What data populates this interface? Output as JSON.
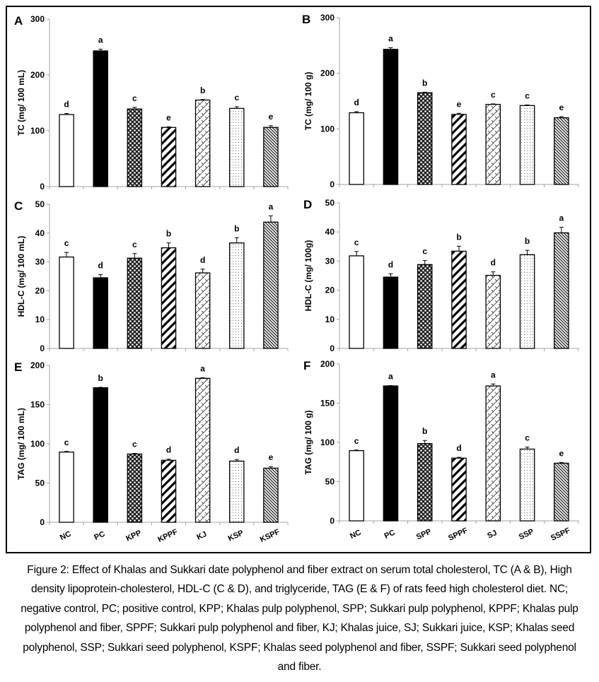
{
  "caption": "Figure 2: Effect of Khalas and Sukkari date polyphenol and fiber extract on serum total cholesterol, TC (A & B), High density lipoprotein-cholesterol, HDL-C (C & D), and triglyceride, TAG (E & F) of rats feed high cholesterol diet. NC; negative control, PC; positive control, KPP; Khalas pulp polyphenol, SPP; Sukkari pulp polyphenol, KPPF; Khalas pulp polyphenol and fiber, SPPF; Sukkari pulp polyphenol and fiber, KJ; Khalas juice, SJ; Sukkari juice, KSP; Khalas seed polyphenol, SSP; Sukkari seed polyphenol, KSPF; Khalas seed polyphenol and fiber, SSPF; Sukkari seed polyphenol and fiber.",
  "colors": {
    "bar_stroke": "#000000",
    "axis": "#a0a0a0",
    "frame": "#000000"
  },
  "patterns": [
    "white",
    "black",
    "checker",
    "diag-wide",
    "zigzag",
    "dots",
    "diag-fine"
  ],
  "chart_data": [
    {
      "panel": "A",
      "type": "bar",
      "ylabel": "TC (mg/ 100 mL)",
      "ylim": [
        0,
        300
      ],
      "yticks": [
        0,
        100,
        200,
        300
      ],
      "categories": [
        "NC",
        "PC",
        "KPP",
        "KPPF",
        "KJ",
        "KSP",
        "KSPF"
      ],
      "show_categories": false,
      "values": [
        129,
        243,
        139,
        106,
        155,
        140,
        106
      ],
      "errors": [
        2,
        3,
        3,
        1,
        1,
        3,
        3
      ],
      "letters": [
        "d",
        "a",
        "c",
        "e",
        "b",
        "c",
        "e"
      ]
    },
    {
      "panel": "B",
      "type": "bar",
      "ylabel": "TC (mg/ 100 g)",
      "ylim": [
        0,
        300
      ],
      "yticks": [
        0,
        100,
        200,
        300
      ],
      "categories": [
        "NC",
        "PC",
        "SPP",
        "SPPF",
        "SJ",
        "SSP",
        "SSPF"
      ],
      "show_categories": false,
      "values": [
        129,
        243,
        165,
        126,
        144,
        142,
        120
      ],
      "errors": [
        2,
        3,
        1,
        2,
        1,
        1,
        2
      ],
      "letters": [
        "d",
        "a",
        "b",
        "e",
        "c",
        "c",
        "e"
      ]
    },
    {
      "panel": "C",
      "type": "bar",
      "ylabel": "HDL-C (mg/ 100 mL)",
      "ylim": [
        0,
        50
      ],
      "yticks": [
        0,
        10,
        20,
        30,
        40,
        50
      ],
      "categories": [
        "NC",
        "PC",
        "KPP",
        "KPPF",
        "KJ",
        "KSP",
        "KSPF"
      ],
      "show_categories": false,
      "values": [
        31.7,
        24.5,
        31.3,
        34.9,
        26.2,
        36.6,
        43.8
      ],
      "errors": [
        1.6,
        1.1,
        1.6,
        1.7,
        1.3,
        1.8,
        2.2
      ],
      "letters": [
        "c",
        "d",
        "c",
        "b",
        "d",
        "b",
        "a"
      ]
    },
    {
      "panel": "D",
      "type": "bar",
      "ylabel": "HDL-C (mg/ 100g)",
      "ylim": [
        0,
        50
      ],
      "yticks": [
        0,
        10,
        20,
        30,
        40,
        50
      ],
      "categories": [
        "NC",
        "PC",
        "SPP",
        "SPPF",
        "SJ",
        "SSP",
        "SSPF"
      ],
      "show_categories": false,
      "values": [
        31.8,
        24.5,
        28.8,
        33.4,
        25.1,
        32.2,
        39.7
      ],
      "errors": [
        1.5,
        1.1,
        1.4,
        1.7,
        1.2,
        1.5,
        1.9
      ],
      "letters": [
        "c",
        "d",
        "c",
        "b",
        "d",
        "b",
        "a"
      ]
    },
    {
      "panel": "E",
      "type": "bar",
      "ylabel": "TAG (mg/ 100 mL)",
      "ylim": [
        0,
        200
      ],
      "yticks": [
        0,
        50,
        100,
        150,
        200
      ],
      "categories": [
        "NC",
        "PC",
        "KPP",
        "KPPF",
        "KJ",
        "KSP",
        "KSPF"
      ],
      "show_categories": true,
      "values": [
        89.5,
        171.5,
        87,
        79,
        183.5,
        78,
        69
      ],
      "errors": [
        0.8,
        0.6,
        0.8,
        1.5,
        0.8,
        2,
        2
      ],
      "letters": [
        "c",
        "b",
        "c",
        "d",
        "a",
        "d",
        "e"
      ]
    },
    {
      "panel": "F",
      "type": "bar",
      "ylabel": "TAG (mg/ 100 g)",
      "ylim": [
        0,
        200
      ],
      "yticks": [
        0,
        50,
        100,
        150,
        200
      ],
      "categories": [
        "NC",
        "PC",
        "SPP",
        "SPPF",
        "SJ",
        "SSP",
        "SSPF"
      ],
      "show_categories": true,
      "values": [
        89.5,
        172,
        98.5,
        80,
        172,
        91.5,
        73.5
      ],
      "errors": [
        0.8,
        0.5,
        4,
        1,
        2.5,
        2.5,
        1
      ],
      "letters": [
        "c",
        "a",
        "b",
        "d",
        "a",
        "c",
        "e"
      ]
    }
  ]
}
